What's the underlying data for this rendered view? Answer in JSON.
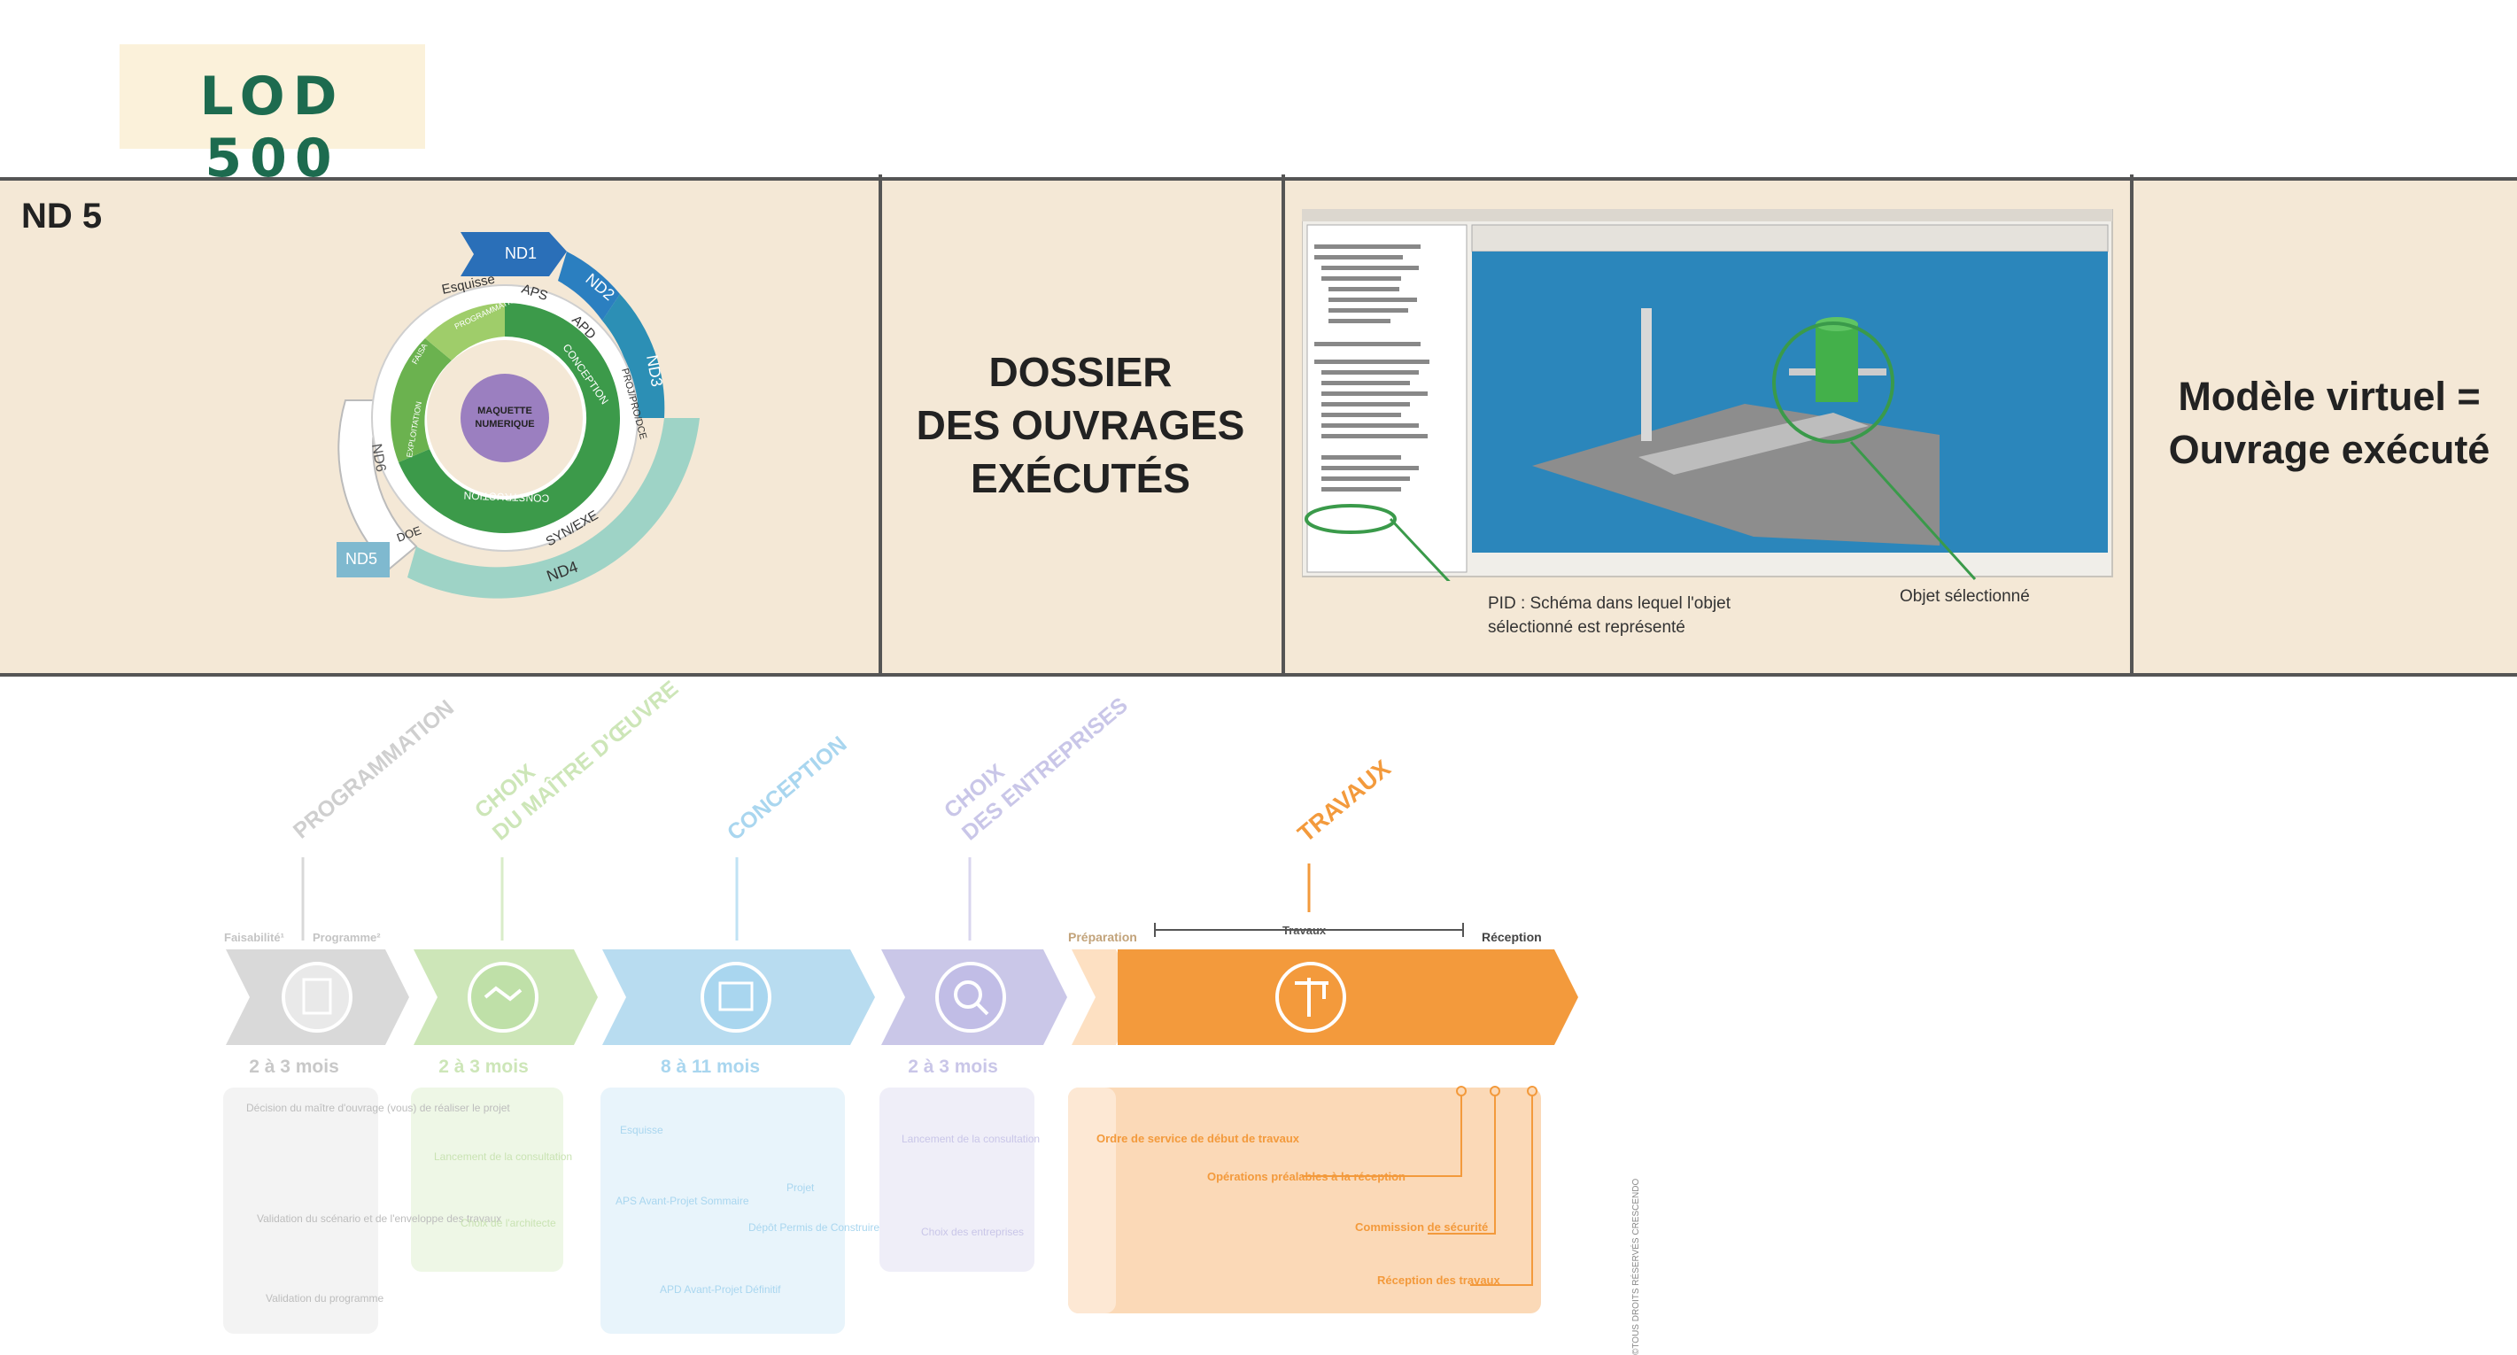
{
  "header": {
    "lod_label": "LOD 500"
  },
  "band": {
    "nd_label": "ND 5",
    "doe_lines": [
      "DOSSIER",
      "DES OUVRAGES",
      "EXÉCUTÉS"
    ],
    "virtual_lines": [
      "Modèle virtuel =",
      "Ouvrage exécuté"
    ],
    "screenshot_caption_pid": [
      "PID : Schéma dans lequel l'objet",
      "sélectionné est représenté"
    ],
    "screenshot_caption_object": "Objet sélectionné"
  },
  "cycle": {
    "center_lines": [
      "MAQUETTE",
      "NUMERIQUE"
    ],
    "nd_labels": [
      "ND1",
      "ND2",
      "ND3",
      "ND4",
      "ND5",
      "ND6"
    ],
    "phase_labels": [
      "Esquisse",
      "APS",
      "APD",
      "PROJ/PRO/DCE",
      "SYN/EXE",
      "DOE"
    ],
    "inner_labels": [
      "PROGRAMMATION",
      "CONCEPTION",
      "CONSTRUCTION",
      "EXPLOITATION",
      "FAISA"
    ]
  },
  "process": {
    "phase_titles": [
      "PROGRAMMATION",
      "CHOIX",
      "DU MAÎTRE D'ŒUVRE",
      "CONCEPTION",
      "CHOIX",
      "DES ENTREPRISES",
      "TRAVAUX"
    ],
    "sub_labels": {
      "faisabilite": "Faisabilité¹",
      "programme": "Programme²",
      "preparation": "Préparation",
      "travaux": "Travaux",
      "reception": "Réception"
    },
    "durations": [
      "2 à 3 mois",
      "2 à 3 mois",
      "8 à 11 mois",
      "2 à 3 mois"
    ],
    "programmation_notes": [
      "Décision du maître d'ouvrage (vous) de réaliser le projet",
      "Validation du scénario et de l'enveloppe des travaux",
      "Validation du programme"
    ],
    "choix_moe_notes": [
      "Lancement de la consultation",
      "Choix de l'architecte"
    ],
    "conception_notes": [
      "Esquisse",
      "APS Avant-Projet Sommaire",
      "APD Avant-Projet Définitif",
      "Dépôt Permis de Construire",
      "Projet"
    ],
    "choix_entreprises_notes": [
      "Lancement de la consultation",
      "Choix des entreprises"
    ],
    "travaux_notes": [
      "Ordre de service de début de travaux",
      "Opérations préalables à la réception",
      "Commission de sécurité",
      "Réception des travaux"
    ],
    "copyright": "©TOUS DROITS RÉSERVÉS CRESCENDO"
  },
  "colors": {
    "lod_text": "#1d6b4f",
    "band_bg": "#f4e8d6",
    "travaux_orange": "#f39a3c",
    "programmation_gray": "#cfcfcf",
    "choix_green": "#bfe0ac",
    "conception_blue": "#a9d6ef",
    "choix_entreprises_purple": "#c9c6e8"
  }
}
